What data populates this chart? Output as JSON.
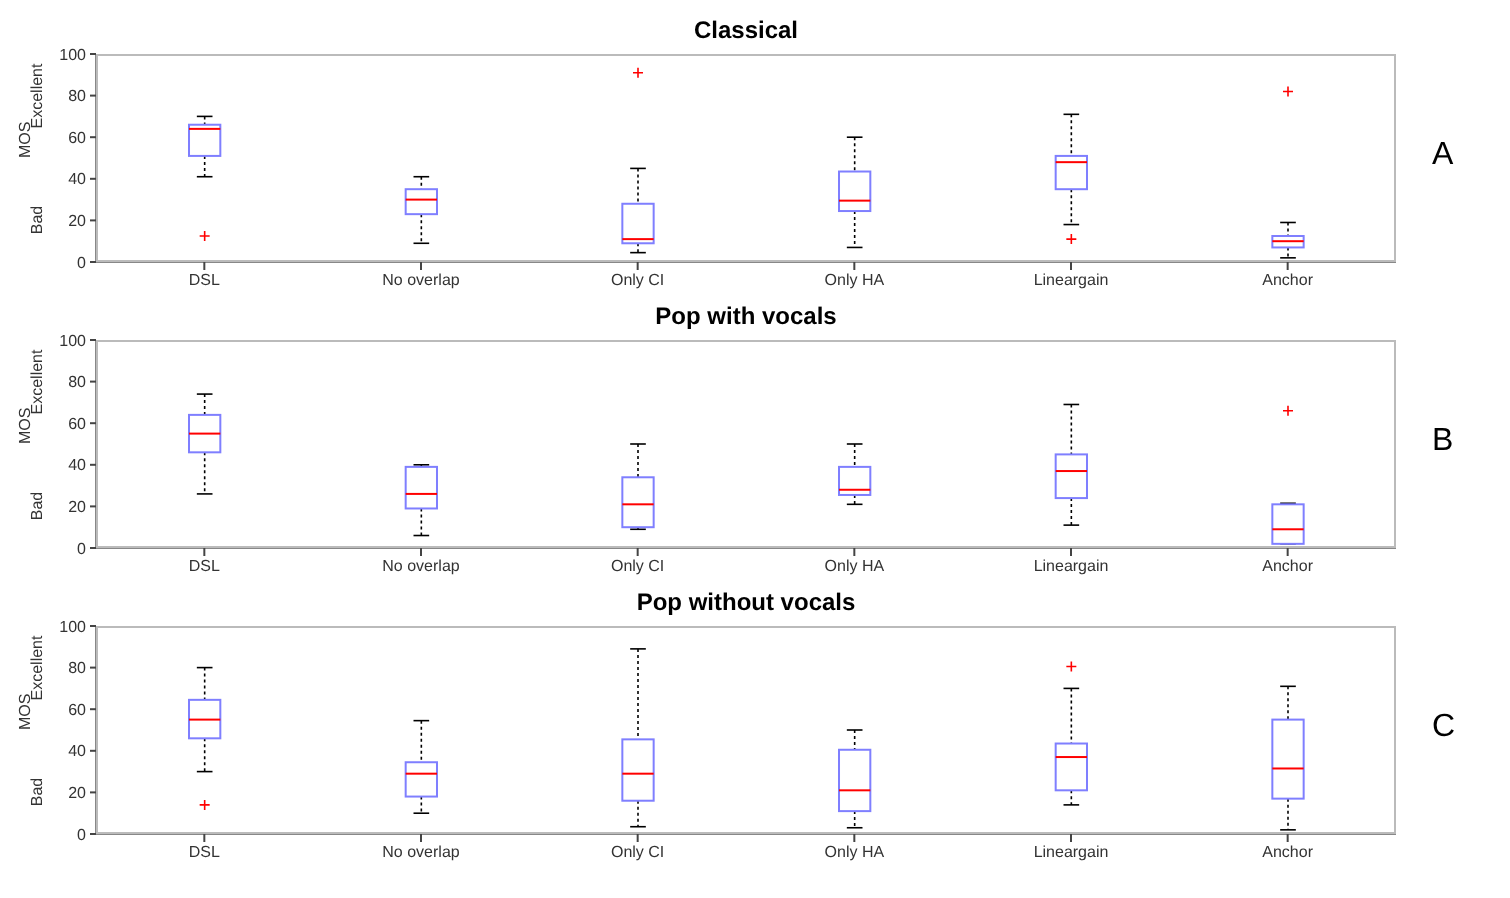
{
  "chart_data": [
    {
      "type": "box",
      "title": "Classical",
      "ylabel": "MOS",
      "annotations": [
        "Bad",
        "Excellent",
        "A"
      ],
      "categories": [
        "DSL",
        "No overlap",
        "Only CI",
        "Only HA",
        "Lineargain",
        "Anchor"
      ],
      "ylim": [
        0,
        100
      ],
      "yticks": [
        0,
        20,
        40,
        60,
        80,
        100
      ],
      "grid": false,
      "series": [
        {
          "color": "#7f7fff",
          "boxes": [
            {
              "low": 41,
              "q1": 51,
              "median": 64,
              "q3": 66,
              "high": 70,
              "outliers": [
                12.5
              ]
            },
            {
              "low": 9,
              "q1": 23,
              "median": 30,
              "q3": 35,
              "high": 41
            },
            {
              "low": 4.5,
              "q1": 9,
              "median": 11,
              "q3": 28,
              "high": 45,
              "outliers": [
                91
              ]
            },
            {
              "low": 7,
              "q1": 24.5,
              "median": 29.5,
              "q3": 43.5,
              "high": 60
            },
            {
              "low": 18,
              "q1": 35,
              "median": 48,
              "q3": 51,
              "high": 71,
              "outliers": [
                11
              ]
            },
            {
              "low": 2,
              "q1": 7,
              "median": 10,
              "q3": 12.5,
              "high": 19,
              "outliers": [
                82
              ]
            }
          ]
        }
      ]
    },
    {
      "type": "box",
      "title": "Pop with vocals",
      "ylabel": "MOS",
      "annotations": [
        "Bad",
        "Excellent",
        "B"
      ],
      "categories": [
        "DSL",
        "No overlap",
        "Only CI",
        "Only HA",
        "Lineargain",
        "Anchor"
      ],
      "ylim": [
        0,
        100
      ],
      "yticks": [
        0,
        20,
        40,
        60,
        80,
        100
      ],
      "grid": false,
      "series": [
        {
          "color": "#7f7fff",
          "boxes": [
            {
              "low": 26,
              "q1": 46,
              "median": 55,
              "q3": 64,
              "high": 74
            },
            {
              "low": 6,
              "q1": 19,
              "median": 26,
              "q3": 39,
              "high": 40
            },
            {
              "low": 9,
              "q1": 10,
              "median": 21,
              "q3": 34,
              "high": 50
            },
            {
              "low": 21,
              "q1": 25.5,
              "median": 28,
              "q3": 39,
              "high": 50
            },
            {
              "low": 11,
              "q1": 24,
              "median": 37,
              "q3": 45,
              "high": 69
            },
            {
              "low": 2,
              "q1": 2,
              "median": 9,
              "q3": 21,
              "high": 21.5,
              "outliers": [
                66
              ]
            }
          ]
        }
      ]
    },
    {
      "type": "box",
      "title": "Pop without vocals",
      "ylabel": "MOS",
      "annotations": [
        "Bad",
        "Excellent",
        "C"
      ],
      "categories": [
        "DSL",
        "No overlap",
        "Only CI",
        "Only HA",
        "Lineargain",
        "Anchor"
      ],
      "ylim": [
        0,
        100
      ],
      "yticks": [
        0,
        20,
        40,
        60,
        80,
        100
      ],
      "grid": false,
      "series": [
        {
          "color": "#7f7fff",
          "boxes": [
            {
              "low": 30,
              "q1": 46,
              "median": 55,
              "q3": 64.5,
              "high": 80,
              "outliers": [
                14
              ]
            },
            {
              "low": 10,
              "q1": 18,
              "median": 29,
              "q3": 34.5,
              "high": 54.5
            },
            {
              "low": 3.5,
              "q1": 16,
              "median": 29,
              "q3": 45.5,
              "high": 89
            },
            {
              "low": 3,
              "q1": 11,
              "median": 21,
              "q3": 40.5,
              "high": 50
            },
            {
              "low": 14,
              "q1": 21,
              "median": 37,
              "q3": 43.5,
              "high": 70,
              "outliers": [
                80.5
              ]
            },
            {
              "low": 2,
              "q1": 17,
              "median": 31.5,
              "q3": 55,
              "high": 71
            }
          ]
        }
      ]
    }
  ]
}
